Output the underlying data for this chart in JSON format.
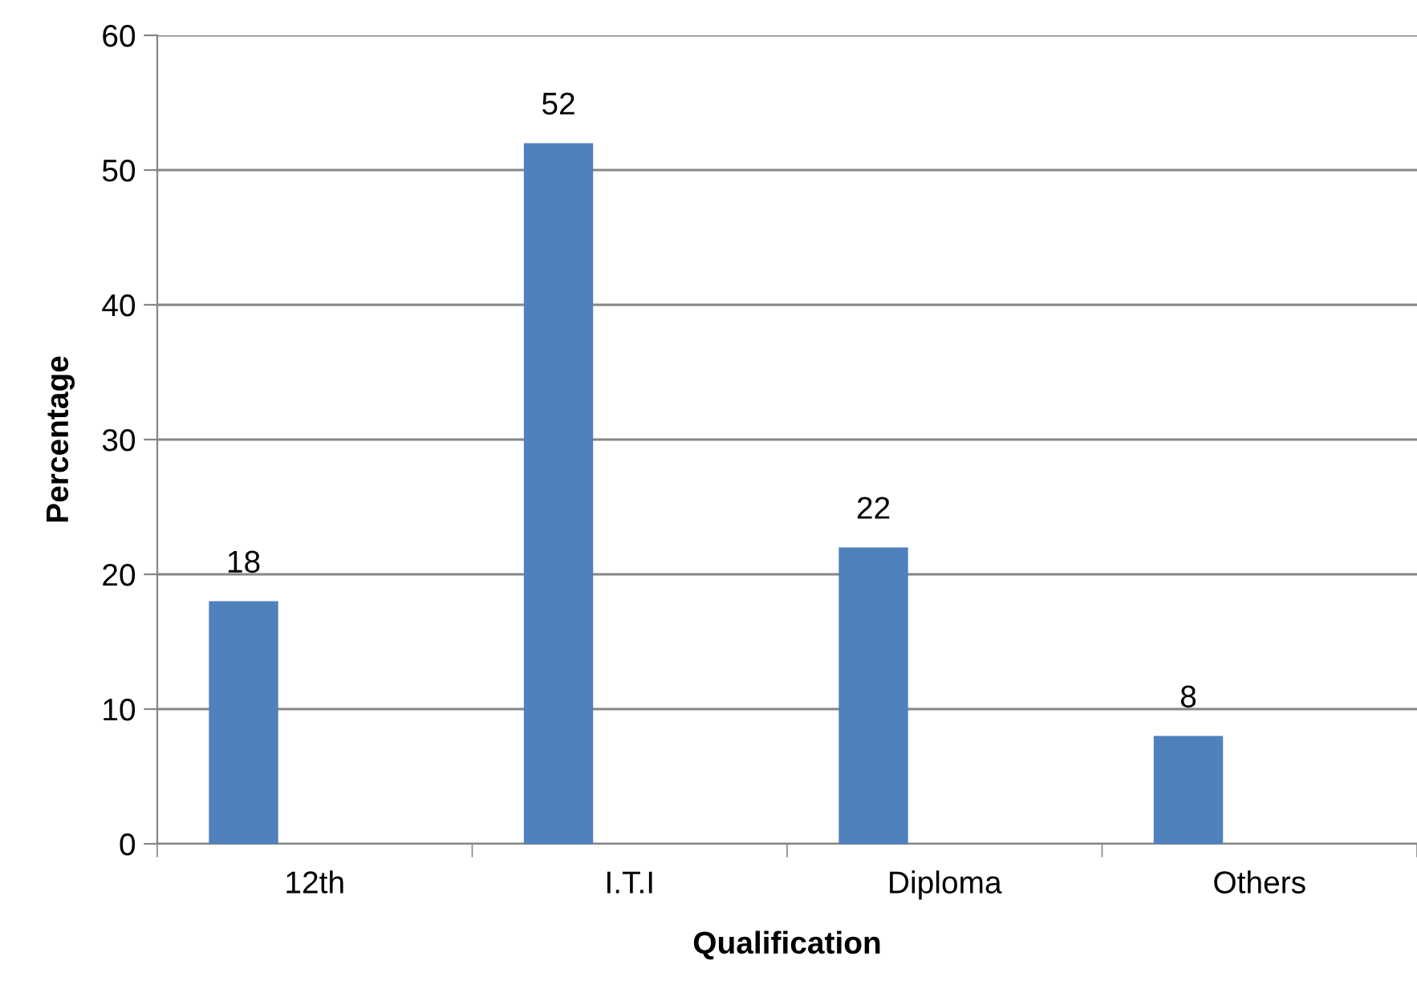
{
  "chart_data": {
    "type": "bar",
    "xlabel": "Qualification",
    "ylabel": "Percentage",
    "categories": [
      "12th",
      "I.T.I",
      "Diploma",
      "Others"
    ],
    "values": [
      18,
      52,
      22,
      8
    ],
    "color": "#4f81bd",
    "ylim": [
      0,
      60
    ],
    "yticks": [
      0,
      10,
      20,
      30,
      40,
      50,
      60
    ],
    "grid": "y",
    "data_labels": true,
    "legend": false
  }
}
